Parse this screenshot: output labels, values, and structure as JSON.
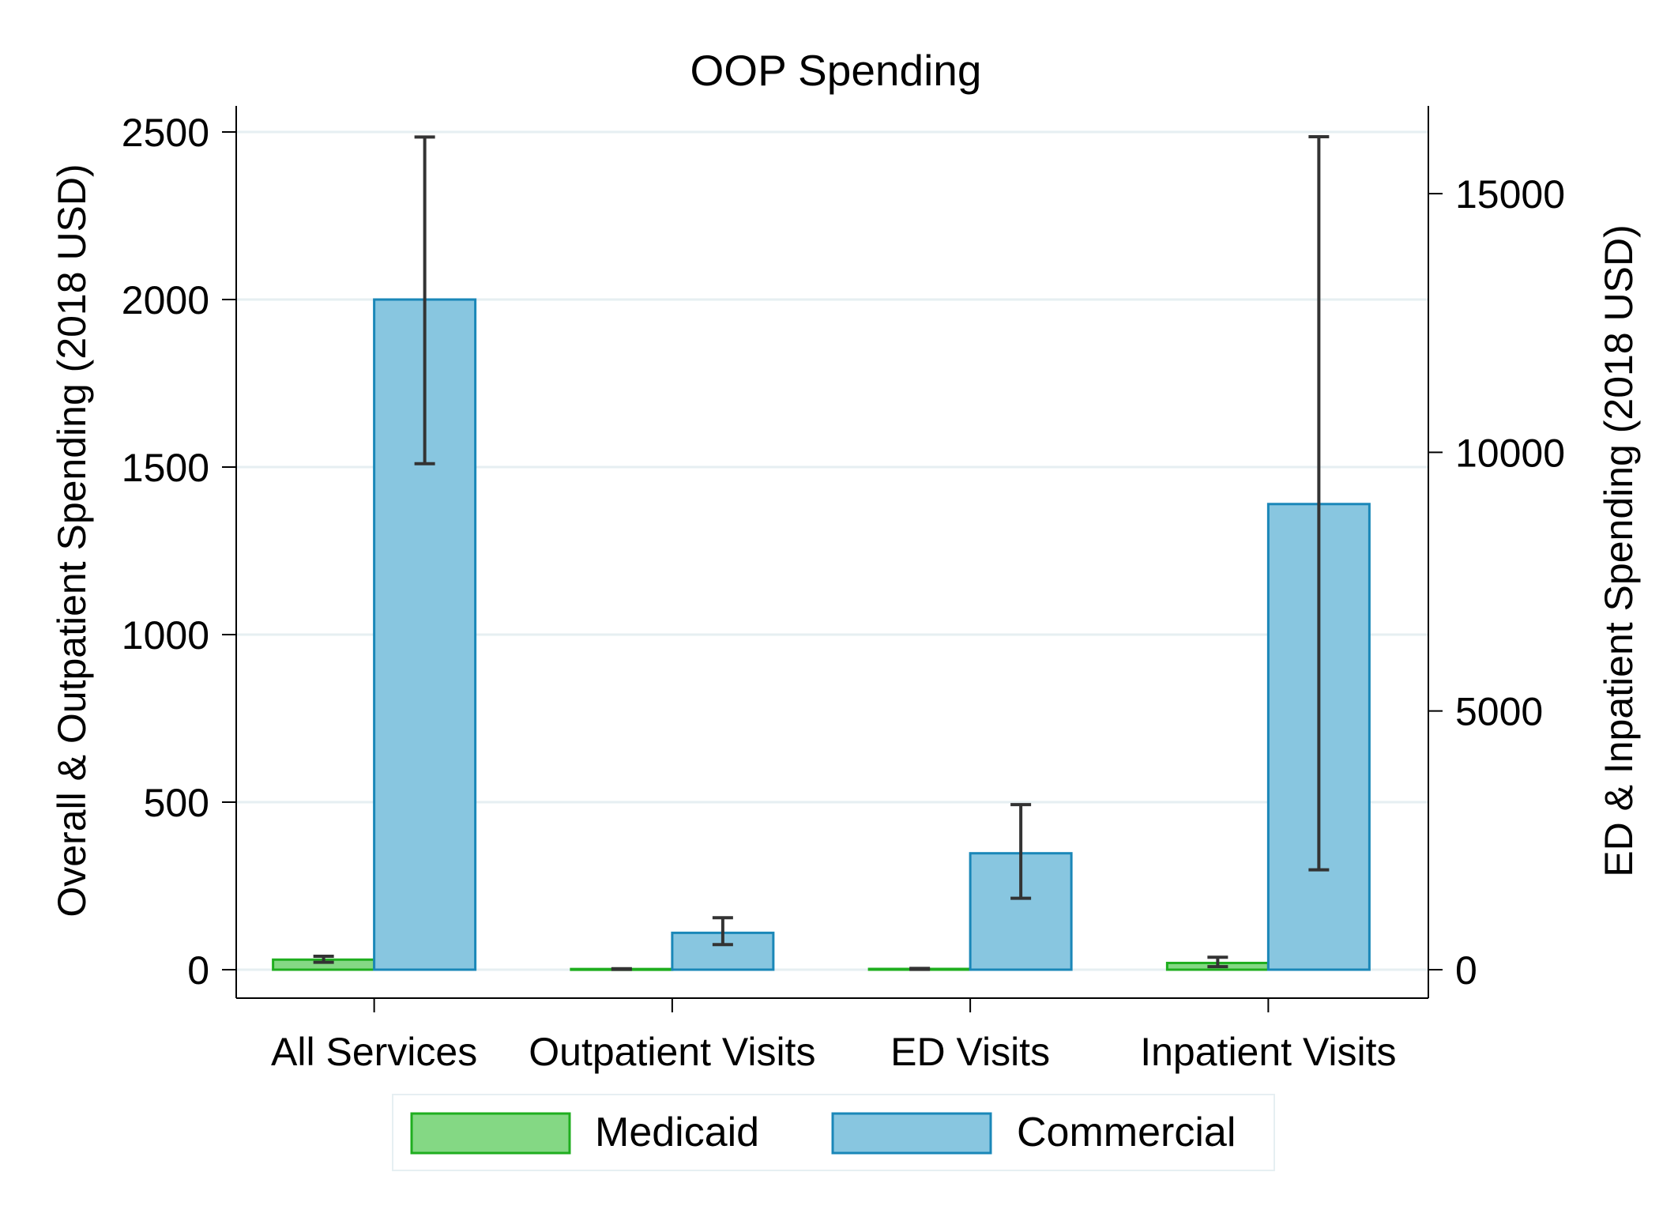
{
  "chart_data": {
    "type": "bar",
    "title": "OOP Spending",
    "categories": [
      "All Services",
      "Outpatient Visits",
      "ED Visits",
      "Inpatient Visits"
    ],
    "category_axis": [
      "left",
      "left",
      "right",
      "right"
    ],
    "series": [
      {
        "name": "Medicaid",
        "values": [
          30,
          2,
          15,
          130
        ],
        "ci_low": [
          22,
          1,
          5,
          60
        ],
        "ci_high": [
          40,
          3,
          25,
          240
        ]
      },
      {
        "name": "Commercial",
        "values": [
          2000,
          110,
          2250,
          9000
        ],
        "ci_low": [
          1510,
          75,
          1380,
          1930
        ],
        "ci_high": [
          2485,
          155,
          3190,
          16100
        ]
      }
    ],
    "y_left": {
      "label": "Overall & Outpatient Spending (2018 USD)",
      "ylim": [
        0,
        2500
      ],
      "ticks": [
        0,
        500,
        1000,
        1500,
        2000,
        2500
      ]
    },
    "y_right": {
      "label": "ED & Inpatient Spending (2018 USD)",
      "ylim": [
        0,
        15000
      ],
      "ticks": [
        0,
        5000,
        10000,
        15000
      ]
    },
    "grid": true,
    "legend": "bottom",
    "colors": {
      "Medicaid_fill": "#84d884",
      "Medicaid_edge": "#1fae1f",
      "Commercial_fill": "#88c6e0",
      "Commercial_edge": "#1a87b8",
      "errorbar": "#333333",
      "grid": "#e6eff2"
    }
  }
}
